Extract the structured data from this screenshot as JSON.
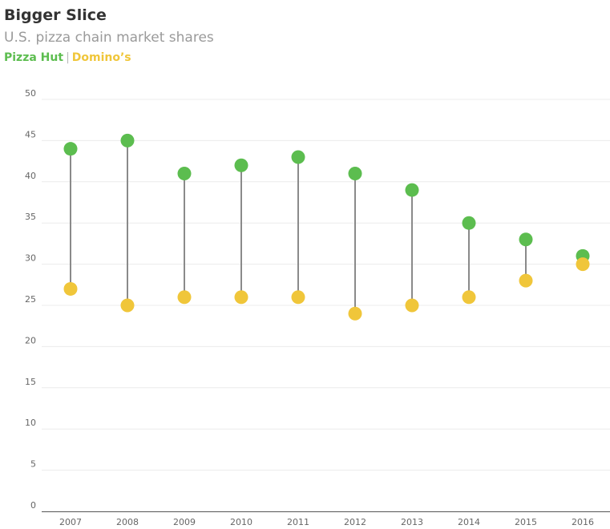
{
  "header": {
    "title": "Bigger Slice",
    "subtitle": "U.S. pizza chain market shares"
  },
  "legend": {
    "separator": "|"
  },
  "chart_data": {
    "type": "dot-plot",
    "title": "Bigger Slice",
    "subtitle": "U.S. pizza chain market shares",
    "categories": [
      "2007",
      "2008",
      "2009",
      "2010",
      "2011",
      "2012",
      "2013",
      "2014",
      "2015",
      "2016"
    ],
    "series": [
      {
        "name": "Pizza Hut",
        "color": "#5cbd4f",
        "values": [
          44,
          45,
          41,
          42,
          43,
          41,
          39,
          35,
          33,
          31
        ]
      },
      {
        "name": "Domino’s",
        "color": "#f0c63a",
        "values": [
          27,
          25,
          26,
          26,
          26,
          24,
          25,
          26,
          28,
          30
        ]
      }
    ],
    "connector_color": "#8a8a8a",
    "ylim": [
      0,
      50
    ],
    "yticks": [
      0,
      5,
      10,
      15,
      20,
      25,
      30,
      35,
      40,
      45,
      50
    ],
    "xlabel": "",
    "ylabel": "",
    "grid": true,
    "legend_position": "top-left"
  }
}
